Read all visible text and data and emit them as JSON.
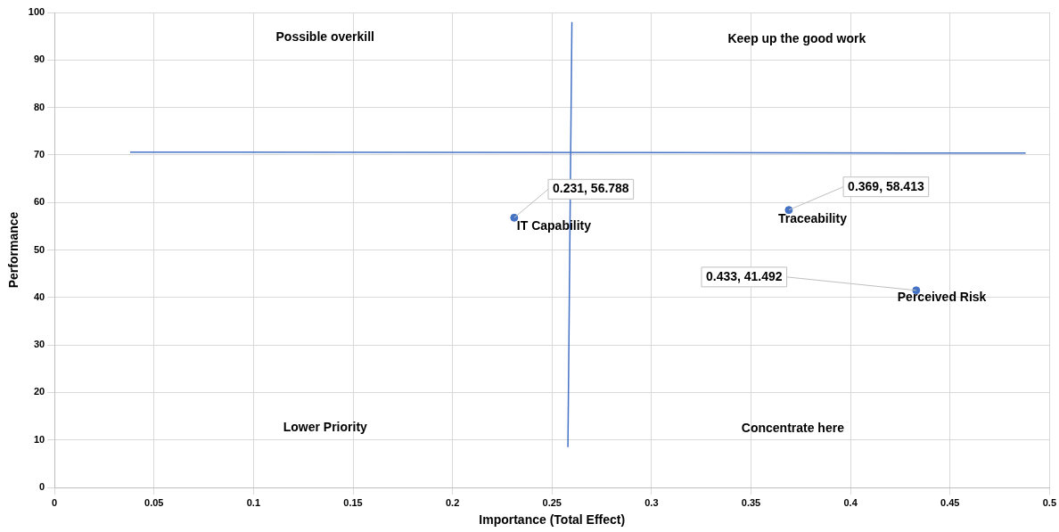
{
  "chart_data": {
    "type": "scatter",
    "xlabel": "Importance (Total Effect)",
    "ylabel": "Performance",
    "xlim": [
      0,
      0.5
    ],
    "xticks": [
      0,
      0.05,
      0.1,
      0.15,
      0.2,
      0.25,
      0.3,
      0.35,
      0.4,
      0.45,
      0.5
    ],
    "ylim": [
      0,
      100
    ],
    "yticks": [
      0,
      10,
      20,
      30,
      40,
      50,
      60,
      70,
      80,
      90,
      100
    ],
    "grid": true,
    "legend": false,
    "marker": "circle",
    "series": [
      {
        "name": "IT Capability",
        "color": "#4472c4",
        "x": [
          0.231
        ],
        "values": [
          56.788
        ],
        "value_labels": [
          "0.231, 56.788"
        ]
      },
      {
        "name": "Traceability",
        "color": "#4472c4",
        "x": [
          0.369
        ],
        "values": [
          58.413
        ],
        "value_labels": [
          "0.369, 58.413"
        ]
      },
      {
        "name": "Perceived Risk",
        "color": "#4472c4",
        "x": [
          0.433
        ],
        "values": [
          41.492
        ],
        "value_labels": [
          "0.433, 41.492"
        ]
      },
      {
        "type": "line",
        "color": "#4472c4",
        "marker": "none",
        "x": [
          0.038,
          0.488
        ],
        "values": [
          70.6,
          70.4
        ]
      },
      {
        "type": "line",
        "color": "#4472c4",
        "marker": "none",
        "x": [
          0.26,
          0.258
        ],
        "values": [
          98,
          8.5
        ]
      }
    ],
    "annotations": [
      "Possible overkill",
      "Keep up the good work",
      "Lower Priority",
      "Concentrate here"
    ]
  }
}
